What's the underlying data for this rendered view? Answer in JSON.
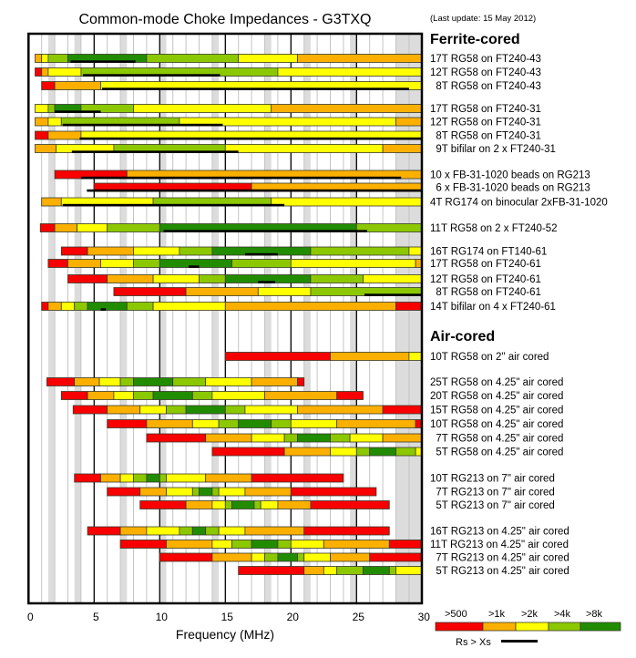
{
  "chart_data": {
    "type": "bar",
    "title": "Common-mode Choke Impedances - G3TXQ",
    "subtitle": "(Last update: 15 May 2012)",
    "xlabel": "Frequency (MHz)",
    "xlim": [
      0,
      30
    ],
    "xticks": [
      "0",
      "5",
      "10",
      "15",
      "20",
      "25",
      "30"
    ],
    "xtick_values": [
      0,
      5,
      10,
      15,
      20,
      25,
      30
    ],
    "amateur_bands_shaded": [
      [
        1.5,
        2
      ],
      [
        3.5,
        4
      ],
      [
        7,
        7.5
      ],
      [
        10,
        10.5
      ],
      [
        14,
        14.5
      ],
      [
        18,
        18.5
      ],
      [
        21,
        21.5
      ],
      [
        24.5,
        25
      ],
      [
        28,
        30
      ]
    ],
    "legend": {
      "levels": [
        {
          "label": ">500",
          "color": "#f80000"
        },
        {
          "label": ">1k",
          "color": "#fbb000"
        },
        {
          "label": ">2k",
          "color": "#ffff00"
        },
        {
          "label": ">4k",
          "color": "#8cc800"
        },
        {
          "label": ">8k",
          "color": "#218c00"
        }
      ],
      "rs_label": "Rs > Xs",
      "placement": "bottom-right"
    },
    "sections": [
      {
        "title": "Ferrite-cored",
        "rows": [
          {
            "label": "17T RG58 on FT240-43",
            "bounds": [
              0.5,
              1,
              1.5,
              3,
              9,
              16,
              20.5,
              30
            ],
            "levels": [
              1,
              2,
              3,
              4,
              3,
              2,
              1
            ],
            "rs_gt_xs": [
              [
                3.2,
                8.15
              ]
            ]
          },
          {
            "label": "12T RG58 on FT240-43",
            "bounds": [
              0.5,
              1,
              1.5,
              4,
              19,
              30
            ],
            "levels": [
              0,
              1,
              2,
              3,
              2
            ],
            "rs_gt_xs": [
              [
                4.15,
                14.6
              ]
            ]
          },
          {
            "label": "  8T RG58 on FT240-43",
            "bounds": [
              1,
              2,
              5.5,
              30
            ],
            "levels": [
              0,
              1,
              2
            ],
            "rs_gt_xs": [
              [
                5.6,
                29
              ]
            ]
          },
          {
            "label": "17T RG58 on FT240-31",
            "bounds": [
              0.5,
              1.5,
              2,
              4,
              8,
              18.5,
              30
            ],
            "levels": [
              2,
              3,
              4,
              3,
              2,
              1
            ],
            "rs_gt_xs": [
              [
                2,
                5.5
              ]
            ]
          },
          {
            "label": "12T RG58 on FT240-31",
            "bounds": [
              0.5,
              1.5,
              2.5,
              11.5,
              28,
              30
            ],
            "levels": [
              1,
              2,
              3,
              2,
              1
            ],
            "rs_gt_xs": [
              [
                2.6,
                14.8
              ]
            ]
          },
          {
            "label": "  8T RG58 on FT240-31",
            "bounds": [
              0.5,
              1.5,
              4,
              30
            ],
            "levels": [
              0,
              1,
              2
            ],
            "rs_gt_xs": [
              [
                3.9,
                30
              ]
            ]
          },
          {
            "label": "  9T bifilar on 2 x FT240-31",
            "bounds": [
              0.5,
              2.1,
              6.5,
              15,
              27,
              30
            ],
            "levels": [
              1,
              2,
              3,
              2,
              1
            ],
            "rs_gt_xs": [
              [
                3.3,
                16
              ]
            ]
          },
          {
            "label": "10 x FB-31-1020 beads on RG213",
            "bounds": [
              2,
              7.5,
              30
            ],
            "levels": [
              0,
              1
            ],
            "rs_gt_xs": [
              [
                4,
                28.4
              ]
            ]
          },
          {
            "label": "  6 x FB-31-1020 beads on RG213",
            "bounds": [
              5,
              17,
              30
            ],
            "levels": [
              0,
              1
            ],
            "rs_gt_xs": [
              [
                4.45,
                30
              ]
            ]
          },
          {
            "label": "4T RG174 on binocular 2xFB-31-1020",
            "bounds": [
              1,
              2.5,
              9.5,
              18.5,
              30
            ],
            "levels": [
              1,
              2,
              3,
              2
            ],
            "rs_gt_xs": [
              [
                2.6,
                19.5
              ]
            ]
          },
          {
            "label": "11T RG58 on 2 x FT240-52",
            "bounds": [
              0.9,
              2,
              3.7,
              6,
              10,
              25,
              30
            ],
            "levels": [
              0,
              1,
              2,
              3,
              4,
              3
            ],
            "rs_gt_xs": [
              [
                10.3,
                25.8
              ]
            ]
          },
          {
            "label": "16T RG174 on FT140-61",
            "bounds": [
              2.5,
              4.5,
              8,
              11.5,
              14,
              21.5,
              29,
              30
            ],
            "levels": [
              0,
              1,
              2,
              3,
              4,
              3,
              2
            ],
            "rs_gt_xs": [
              [
                16.5,
                19
              ]
            ]
          },
          {
            "label": "17T RG58 on FT240-61",
            "bounds": [
              1.5,
              3,
              5.5,
              8,
              10,
              15.5,
              20,
              29.5,
              30
            ],
            "levels": [
              0,
              1,
              2,
              3,
              4,
              3,
              2,
              1
            ],
            "rs_gt_xs": [
              [
                12.2,
                13
              ]
            ]
          },
          {
            "label": "12T RG58 on FT240-61",
            "bounds": [
              3,
              6,
              9.5,
              13,
              15,
              21.5,
              25.5,
              30
            ],
            "levels": [
              0,
              1,
              2,
              3,
              4,
              3,
              2
            ],
            "rs_gt_xs": [
              [
                17.5,
                18.8
              ]
            ]
          },
          {
            "label": "  8T RG58 on FT240-61",
            "bounds": [
              6.5,
              12,
              17.5,
              21.5,
              30
            ],
            "levels": [
              0,
              1,
              2,
              3
            ],
            "rs_gt_xs": [
              [
                25.6,
                30
              ]
            ]
          },
          {
            "label": "14T bifilar on 4 x FT240-61",
            "bounds": [
              1,
              1.5,
              2.5,
              3.5,
              4.5,
              7.5,
              9.5,
              15,
              28,
              30
            ],
            "levels": [
              0,
              1,
              2,
              3,
              4,
              3,
              2,
              1,
              0
            ],
            "rs_gt_xs": [
              [
                5.5,
                5.9
              ]
            ]
          }
        ]
      },
      {
        "title": "Air-cored",
        "rows": [
          {
            "label": "10T RG58 on 2\" air cored",
            "bounds": [
              15,
              23,
              29,
              30
            ],
            "levels": [
              0,
              1,
              2
            ],
            "rs_gt_xs": []
          },
          {
            "label": "25T RG58 on 4.25\" air cored",
            "bounds": [
              1.4,
              3.5,
              5.4,
              7,
              8,
              11,
              13.5,
              17,
              20.5,
              21
            ],
            "levels": [
              0,
              1,
              2,
              3,
              4,
              3,
              2,
              1,
              0
            ],
            "rs_gt_xs": []
          },
          {
            "label": "20T RG58 on 4.25\" air cored",
            "bounds": [
              2.5,
              4.5,
              6.5,
              8,
              9.5,
              12.5,
              14,
              18,
              23.5,
              25.5
            ],
            "levels": [
              0,
              1,
              2,
              3,
              4,
              3,
              2,
              1,
              0
            ],
            "rs_gt_xs": []
          },
          {
            "label": "15T RG58 on 4.25\" air cored",
            "bounds": [
              3.4,
              6,
              8.5,
              10.5,
              12,
              15,
              16.5,
              20.5,
              27,
              30
            ],
            "levels": [
              0,
              1,
              2,
              3,
              4,
              3,
              2,
              1,
              0
            ],
            "rs_gt_xs": []
          },
          {
            "label": "10T RG58 on 4.25\" air cored",
            "bounds": [
              6,
              9,
              12.5,
              14.5,
              16,
              18.5,
              20,
              23.5,
              29.5,
              30
            ],
            "levels": [
              0,
              1,
              2,
              3,
              4,
              3,
              2,
              1,
              0
            ],
            "rs_gt_xs": []
          },
          {
            "label": "  7T RG58 on 4.25\" air cored",
            "bounds": [
              9,
              13.5,
              17,
              19.5,
              20.5,
              23,
              24.5,
              27,
              30
            ],
            "levels": [
              0,
              1,
              2,
              3,
              4,
              3,
              2,
              1
            ],
            "rs_gt_xs": []
          },
          {
            "label": "  5T RG58 on 4.25\" air cored",
            "bounds": [
              14,
              19.5,
              23,
              25,
              26,
              28,
              29.5,
              30
            ],
            "levels": [
              0,
              1,
              2,
              3,
              4,
              3,
              2
            ],
            "rs_gt_xs": []
          },
          {
            "label": "10T RG213 on 7\" air cored",
            "bounds": [
              3.5,
              5.5,
              7,
              8,
              9,
              10,
              10.5,
              13.5,
              17,
              24
            ],
            "levels": [
              0,
              1,
              2,
              3,
              4,
              3,
              2,
              1,
              0
            ],
            "rs_gt_xs": []
          },
          {
            "label": "  7T RG213 on 7\" air cored",
            "bounds": [
              6,
              8.5,
              10.5,
              12.5,
              13,
              14,
              14.5,
              16.5,
              20,
              26.5
            ],
            "levels": [
              0,
              1,
              2,
              3,
              4,
              3,
              2,
              1,
              0
            ],
            "rs_gt_xs": []
          },
          {
            "label": "  5T RG213 on 7\" air cored",
            "bounds": [
              8.5,
              12,
              14,
              15,
              15.5,
              17.2,
              17.7,
              19,
              21.5,
              27.5
            ],
            "levels": [
              0,
              1,
              2,
              3,
              4,
              3,
              2,
              1,
              0
            ],
            "rs_gt_xs": []
          },
          {
            "label": "16T RG213 on 4.25\" air cored",
            "bounds": [
              4.5,
              7,
              9,
              11.5,
              12.5,
              13.5,
              14.5,
              16.5,
              21,
              27.5
            ],
            "levels": [
              0,
              1,
              2,
              3,
              4,
              3,
              2,
              1,
              0
            ],
            "rs_gt_xs": []
          },
          {
            "label": "11T RG213 on 4.25\" air cored",
            "bounds": [
              7,
              10.5,
              14,
              15.5,
              17,
              19,
              20,
              22.5,
              27.5,
              30
            ],
            "levels": [
              0,
              1,
              2,
              3,
              4,
              3,
              2,
              1,
              0
            ],
            "rs_gt_xs": []
          },
          {
            "label": "  7T RG213 on 4.25\" air cored",
            "bounds": [
              10,
              14,
              17,
              18,
              19,
              20.5,
              21,
              23,
              26,
              30
            ],
            "levels": [
              0,
              1,
              2,
              3,
              4,
              3,
              2,
              1,
              0
            ],
            "rs_gt_xs": []
          },
          {
            "label": "  5T RG213 on 4.25\" air cored",
            "bounds": [
              16,
              21,
              22.5,
              23.5,
              25.5,
              27.5,
              28,
              30
            ],
            "levels": [
              0,
              1,
              2,
              3,
              4,
              3,
              2
            ],
            "rs_gt_xs": []
          }
        ]
      }
    ]
  }
}
